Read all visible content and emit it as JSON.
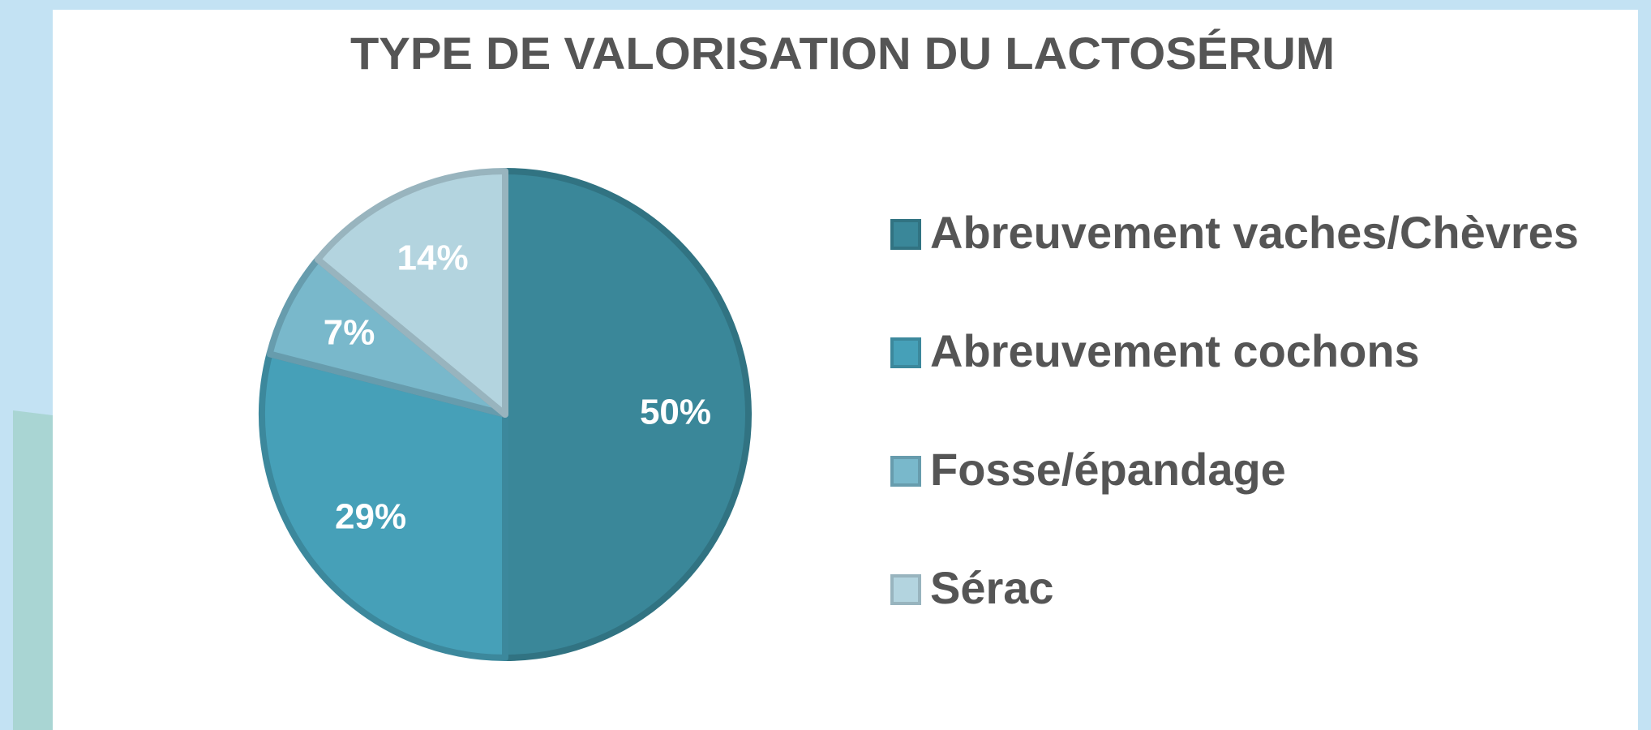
{
  "chart_data": {
    "type": "pie",
    "title": "TYPE DE VALORISATION DU LACTOSÉRUM",
    "categories": [
      "Abreuvement vaches/Chèvres",
      "Abreuvement cochons",
      "Fosse/épandage",
      "Sérac"
    ],
    "values": [
      50,
      29,
      7,
      14
    ],
    "value_labels": [
      "50%",
      "29%",
      "7%",
      "14%"
    ],
    "colors": [
      "#3a8799",
      "#46a0b8",
      "#79b8cb",
      "#b3d4df"
    ],
    "legend": "right"
  }
}
